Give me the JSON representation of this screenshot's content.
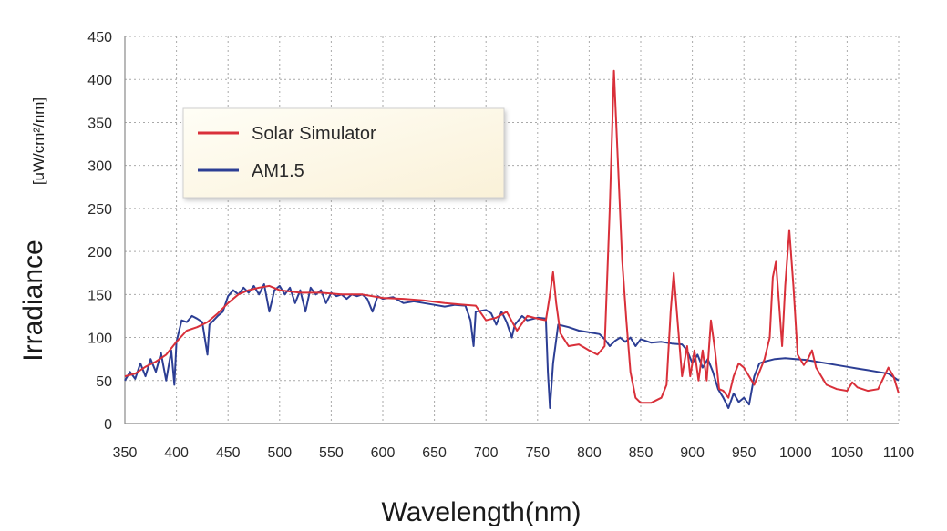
{
  "chart_data": {
    "type": "line",
    "title": "",
    "xlabel": "Wavelength(nm)",
    "ylabel": "Irradiance",
    "ylabel_unit": "[uW/cm²/nm]",
    "xlim": [
      350,
      1100
    ],
    "ylim": [
      0,
      450
    ],
    "xticks": [
      350,
      400,
      450,
      500,
      550,
      600,
      650,
      700,
      750,
      800,
      850,
      900,
      950,
      1000,
      1050,
      1100
    ],
    "yticks": [
      0,
      50,
      100,
      150,
      200,
      250,
      300,
      350,
      400,
      450
    ],
    "grid": true,
    "legend_position": "top-left",
    "series": [
      {
        "name": "Solar Simulator",
        "color": "#d9303a",
        "points": [
          [
            350,
            55
          ],
          [
            360,
            58
          ],
          [
            370,
            66
          ],
          [
            380,
            72
          ],
          [
            390,
            80
          ],
          [
            400,
            95
          ],
          [
            410,
            108
          ],
          [
            420,
            112
          ],
          [
            430,
            118
          ],
          [
            440,
            128
          ],
          [
            450,
            140
          ],
          [
            460,
            150
          ],
          [
            470,
            155
          ],
          [
            480,
            158
          ],
          [
            490,
            160
          ],
          [
            500,
            155
          ],
          [
            520,
            152
          ],
          [
            540,
            152
          ],
          [
            560,
            150
          ],
          [
            580,
            150
          ],
          [
            600,
            146
          ],
          [
            620,
            145
          ],
          [
            640,
            143
          ],
          [
            660,
            140
          ],
          [
            680,
            138
          ],
          [
            690,
            137
          ],
          [
            700,
            120
          ],
          [
            710,
            123
          ],
          [
            720,
            130
          ],
          [
            730,
            108
          ],
          [
            740,
            125
          ],
          [
            750,
            122
          ],
          [
            758,
            120
          ],
          [
            762,
            150
          ],
          [
            765,
            176
          ],
          [
            768,
            140
          ],
          [
            772,
            105
          ],
          [
            780,
            90
          ],
          [
            790,
            92
          ],
          [
            800,
            85
          ],
          [
            808,
            80
          ],
          [
            815,
            90
          ],
          [
            820,
            250
          ],
          [
            824,
            410
          ],
          [
            828,
            300
          ],
          [
            832,
            190
          ],
          [
            836,
            120
          ],
          [
            840,
            60
          ],
          [
            845,
            30
          ],
          [
            850,
            24
          ],
          [
            860,
            24
          ],
          [
            870,
            30
          ],
          [
            875,
            45
          ],
          [
            879,
            130
          ],
          [
            882,
            175
          ],
          [
            885,
            130
          ],
          [
            890,
            55
          ],
          [
            895,
            90
          ],
          [
            898,
            55
          ],
          [
            902,
            85
          ],
          [
            906,
            50
          ],
          [
            910,
            85
          ],
          [
            914,
            50
          ],
          [
            918,
            120
          ],
          [
            922,
            85
          ],
          [
            926,
            40
          ],
          [
            930,
            38
          ],
          [
            935,
            30
          ],
          [
            940,
            55
          ],
          [
            945,
            70
          ],
          [
            950,
            65
          ],
          [
            955,
            55
          ],
          [
            960,
            45
          ],
          [
            965,
            60
          ],
          [
            970,
            75
          ],
          [
            975,
            100
          ],
          [
            978,
            170
          ],
          [
            981,
            188
          ],
          [
            984,
            140
          ],
          [
            987,
            90
          ],
          [
            990,
            160
          ],
          [
            994,
            225
          ],
          [
            998,
            160
          ],
          [
            1002,
            80
          ],
          [
            1008,
            68
          ],
          [
            1012,
            75
          ],
          [
            1016,
            85
          ],
          [
            1020,
            65
          ],
          [
            1030,
            45
          ],
          [
            1040,
            40
          ],
          [
            1050,
            38
          ],
          [
            1055,
            48
          ],
          [
            1060,
            42
          ],
          [
            1070,
            38
          ],
          [
            1080,
            40
          ],
          [
            1090,
            65
          ],
          [
            1095,
            55
          ],
          [
            1100,
            35
          ]
        ]
      },
      {
        "name": "AM1.5",
        "color": "#2c3e94",
        "points": [
          [
            350,
            50
          ],
          [
            355,
            60
          ],
          [
            360,
            52
          ],
          [
            365,
            70
          ],
          [
            370,
            55
          ],
          [
            375,
            75
          ],
          [
            380,
            60
          ],
          [
            385,
            82
          ],
          [
            390,
            50
          ],
          [
            395,
            85
          ],
          [
            398,
            45
          ],
          [
            400,
            95
          ],
          [
            405,
            120
          ],
          [
            410,
            118
          ],
          [
            415,
            125
          ],
          [
            420,
            122
          ],
          [
            425,
            118
          ],
          [
            430,
            80
          ],
          [
            432,
            115
          ],
          [
            440,
            125
          ],
          [
            445,
            130
          ],
          [
            450,
            148
          ],
          [
            455,
            155
          ],
          [
            460,
            150
          ],
          [
            465,
            158
          ],
          [
            470,
            152
          ],
          [
            475,
            160
          ],
          [
            480,
            150
          ],
          [
            485,
            162
          ],
          [
            490,
            130
          ],
          [
            495,
            155
          ],
          [
            500,
            160
          ],
          [
            505,
            150
          ],
          [
            510,
            158
          ],
          [
            515,
            140
          ],
          [
            520,
            155
          ],
          [
            525,
            130
          ],
          [
            530,
            158
          ],
          [
            535,
            150
          ],
          [
            540,
            155
          ],
          [
            545,
            140
          ],
          [
            550,
            152
          ],
          [
            555,
            148
          ],
          [
            560,
            150
          ],
          [
            565,
            145
          ],
          [
            570,
            150
          ],
          [
            575,
            148
          ],
          [
            580,
            150
          ],
          [
            585,
            145
          ],
          [
            590,
            130
          ],
          [
            595,
            148
          ],
          [
            600,
            145
          ],
          [
            610,
            147
          ],
          [
            620,
            140
          ],
          [
            630,
            142
          ],
          [
            640,
            140
          ],
          [
            650,
            138
          ],
          [
            660,
            136
          ],
          [
            670,
            138
          ],
          [
            680,
            137
          ],
          [
            685,
            120
          ],
          [
            688,
            90
          ],
          [
            690,
            130
          ],
          [
            700,
            132
          ],
          [
            705,
            128
          ],
          [
            710,
            115
          ],
          [
            715,
            130
          ],
          [
            720,
            118
          ],
          [
            725,
            100
          ],
          [
            728,
            115
          ],
          [
            735,
            125
          ],
          [
            740,
            120
          ],
          [
            750,
            123
          ],
          [
            758,
            122
          ],
          [
            760,
            60
          ],
          [
            762,
            18
          ],
          [
            765,
            70
          ],
          [
            770,
            115
          ],
          [
            780,
            112
          ],
          [
            790,
            108
          ],
          [
            800,
            106
          ],
          [
            810,
            104
          ],
          [
            815,
            98
          ],
          [
            820,
            90
          ],
          [
            825,
            96
          ],
          [
            830,
            100
          ],
          [
            835,
            95
          ],
          [
            840,
            100
          ],
          [
            845,
            90
          ],
          [
            850,
            98
          ],
          [
            860,
            94
          ],
          [
            870,
            95
          ],
          [
            880,
            93
          ],
          [
            890,
            92
          ],
          [
            895,
            85
          ],
          [
            900,
            70
          ],
          [
            905,
            80
          ],
          [
            910,
            65
          ],
          [
            915,
            75
          ],
          [
            920,
            60
          ],
          [
            925,
            40
          ],
          [
            930,
            30
          ],
          [
            935,
            18
          ],
          [
            940,
            35
          ],
          [
            945,
            25
          ],
          [
            950,
            30
          ],
          [
            955,
            22
          ],
          [
            960,
            55
          ],
          [
            965,
            70
          ],
          [
            970,
            72
          ],
          [
            980,
            75
          ],
          [
            990,
            76
          ],
          [
            1000,
            75
          ],
          [
            1010,
            74
          ],
          [
            1020,
            72
          ],
          [
            1030,
            70
          ],
          [
            1040,
            68
          ],
          [
            1050,
            66
          ],
          [
            1060,
            64
          ],
          [
            1070,
            62
          ],
          [
            1080,
            60
          ],
          [
            1090,
            58
          ],
          [
            1100,
            50
          ]
        ]
      }
    ]
  }
}
